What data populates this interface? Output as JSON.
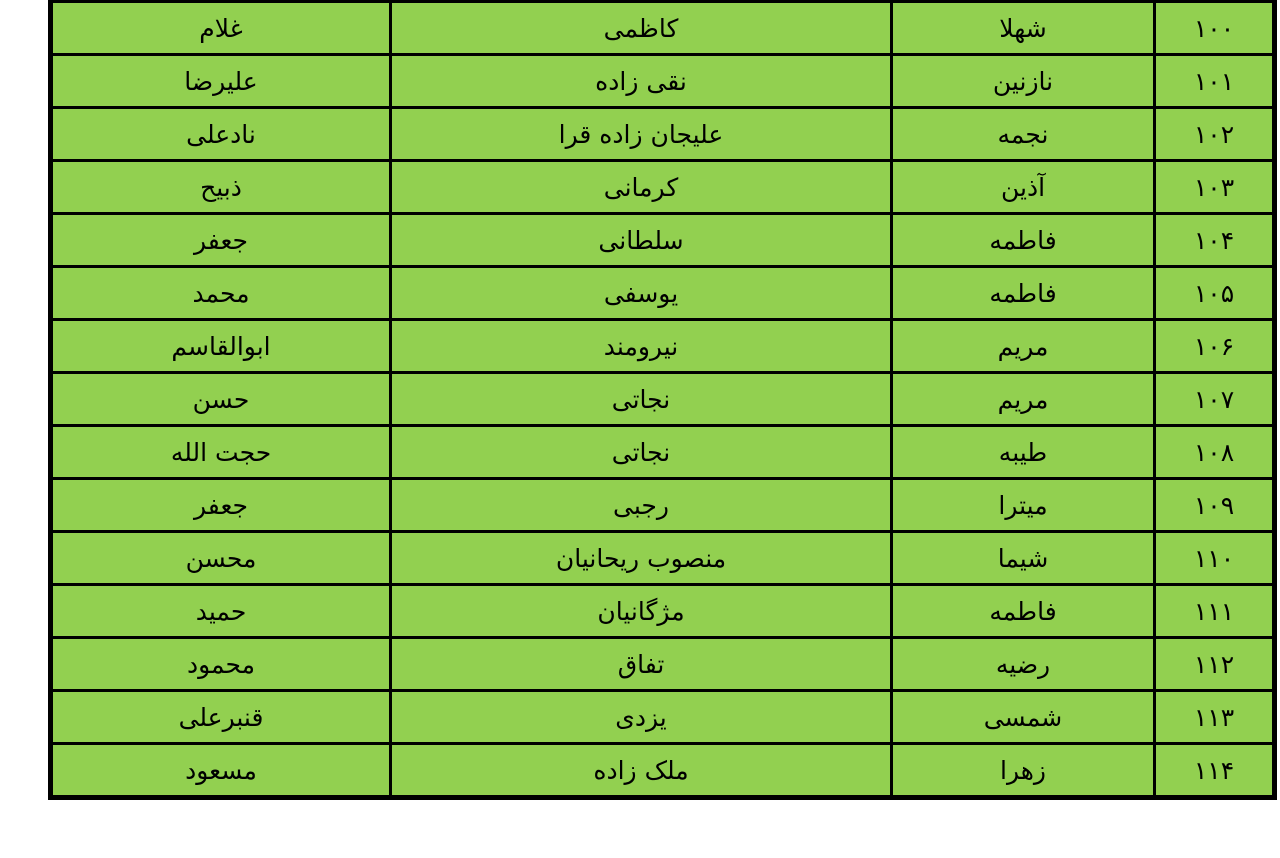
{
  "page": {
    "background": "#ffffff"
  },
  "table": {
    "direction": "rtl",
    "cell_background": "#92d050",
    "border_color": "#000000",
    "text_color": "#000000",
    "rows": [
      {
        "number": "۱۰۰",
        "first_name": "شهلا",
        "last_name": "کاظمی",
        "father_name": "غلام"
      },
      {
        "number": "۱۰۱",
        "first_name": "نازنین",
        "last_name": "نقی زاده",
        "father_name": "علیرضا"
      },
      {
        "number": "۱۰۲",
        "first_name": "نجمه",
        "last_name": "علیجان زاده قرا",
        "father_name": "نادعلی"
      },
      {
        "number": "۱۰۳",
        "first_name": "آذین",
        "last_name": "کرمانی",
        "father_name": "ذبیح"
      },
      {
        "number": "۱۰۴",
        "first_name": "فاطمه",
        "last_name": "سلطانی",
        "father_name": "جعفر"
      },
      {
        "number": "۱۰۵",
        "first_name": "فاطمه",
        "last_name": "یوسفی",
        "father_name": "محمد"
      },
      {
        "number": "۱۰۶",
        "first_name": "مریم",
        "last_name": "نیرومند",
        "father_name": "ابوالقاسم"
      },
      {
        "number": "۱۰۷",
        "first_name": "مریم",
        "last_name": "نجاتی",
        "father_name": "حسن"
      },
      {
        "number": "۱۰۸",
        "first_name": "طیبه",
        "last_name": "نجاتی",
        "father_name": "حجت الله"
      },
      {
        "number": "۱۰۹",
        "first_name": "میترا",
        "last_name": "رجبی",
        "father_name": "جعفر"
      },
      {
        "number": "۱۱۰",
        "first_name": "شیما",
        "last_name": "منصوب ریحانیان",
        "father_name": "محسن"
      },
      {
        "number": "۱۱۱",
        "first_name": "فاطمه",
        "last_name": "مژگانیان",
        "father_name": "حمید"
      },
      {
        "number": "۱۱۲",
        "first_name": "رضیه",
        "last_name": "تفاق",
        "father_name": "محمود"
      },
      {
        "number": "۱۱۳",
        "first_name": "شمسی",
        "last_name": "یزدی",
        "father_name": "قنبرعلی"
      },
      {
        "number": "۱۱۴",
        "first_name": "زهرا",
        "last_name": "ملک زاده",
        "father_name": "مسعود"
      }
    ]
  }
}
